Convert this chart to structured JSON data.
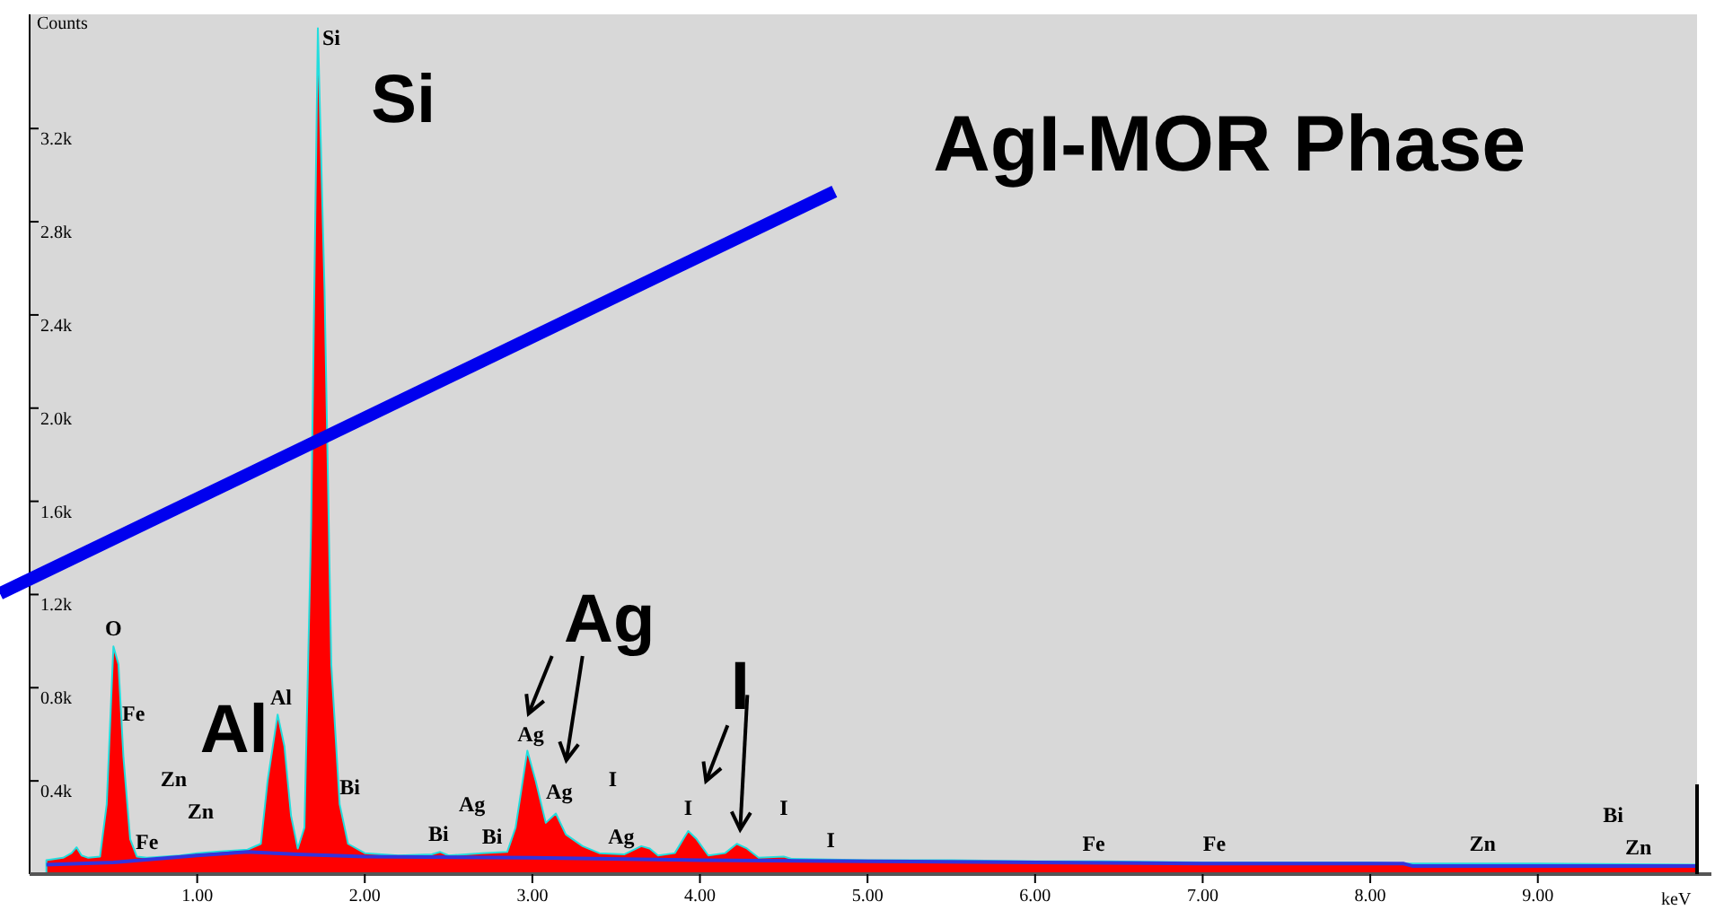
{
  "chart_data": {
    "type": "area",
    "ylabel": "Counts",
    "xlabel": "keV",
    "xlim": [
      0,
      9.95
    ],
    "ylim": [
      0,
      3690
    ],
    "xticks": [
      {
        "value": 1,
        "label": "1.00"
      },
      {
        "value": 2,
        "label": "2.00"
      },
      {
        "value": 3,
        "label": "3.00"
      },
      {
        "value": 4,
        "label": "4.00"
      },
      {
        "value": 5,
        "label": "5.00"
      },
      {
        "value": 6,
        "label": "6.00"
      },
      {
        "value": 7,
        "label": "7.00"
      },
      {
        "value": 8,
        "label": "8.00"
      },
      {
        "value": 9,
        "label": "9.00"
      }
    ],
    "yticks": [
      {
        "value": 400,
        "label": "0.4k"
      },
      {
        "value": 800,
        "label": "0.8k"
      },
      {
        "value": 1200,
        "label": "1.2k"
      },
      {
        "value": 1600,
        "label": "1.6k"
      },
      {
        "value": 2000,
        "label": "2.0k"
      },
      {
        "value": 2400,
        "label": "2.4k"
      },
      {
        "value": 2800,
        "label": "2.8k"
      },
      {
        "value": 3200,
        "label": "3.2k"
      }
    ],
    "grid": false,
    "series": [
      {
        "color": "#ff0000",
        "x": [
          0.1,
          0.2,
          0.25,
          0.28,
          0.31,
          0.35,
          0.42,
          0.46,
          0.5,
          0.53,
          0.56,
          0.6,
          0.64,
          0.7,
          0.8,
          0.9,
          1.0,
          1.1,
          1.2,
          1.3,
          1.38,
          1.42,
          1.48,
          1.52,
          1.56,
          1.6,
          1.64,
          1.68,
          1.72,
          1.76,
          1.8,
          1.85,
          1.9,
          2.0,
          2.2,
          2.4,
          2.45,
          2.5,
          2.7,
          2.85,
          2.9,
          2.97,
          3.02,
          3.08,
          3.14,
          3.2,
          3.3,
          3.4,
          3.55,
          3.65,
          3.7,
          3.75,
          3.85,
          3.93,
          3.98,
          4.05,
          4.15,
          4.22,
          4.28,
          4.35,
          4.5,
          4.55,
          5.0,
          5.5,
          6.0,
          6.4,
          7.0,
          8.0,
          8.2,
          9.0,
          9.95
        ],
        "values": [
          60,
          70,
          90,
          115,
          80,
          70,
          75,
          300,
          977,
          900,
          500,
          150,
          75,
          70,
          75,
          80,
          90,
          95,
          100,
          105,
          130,
          400,
          685,
          550,
          250,
          110,
          200,
          1500,
          3630,
          2500,
          900,
          300,
          130,
          90,
          80,
          85,
          95,
          80,
          90,
          95,
          200,
          530,
          400,
          220,
          260,
          170,
          120,
          90,
          85,
          120,
          110,
          80,
          90,
          185,
          150,
          80,
          90,
          130,
          110,
          70,
          75,
          65,
          60,
          60,
          55,
          55,
          50,
          50,
          45,
          45,
          40
        ]
      },
      {
        "type": "line",
        "color": "#3333dd",
        "x": [
          0.1,
          0.5,
          1.0,
          1.3,
          1.6,
          2.0,
          3.0,
          4.0,
          5.0,
          6.0,
          7.0,
          8.2,
          8.25,
          9.95
        ],
        "values": [
          40,
          50,
          80,
          95,
          85,
          75,
          70,
          60,
          55,
          50,
          45,
          45,
          35,
          35
        ]
      }
    ],
    "annotations": [
      "O",
      "Fe",
      "Zn",
      "Zn",
      "Fe",
      "Al",
      "Si",
      "Bi",
      "Bi",
      "Ag",
      "Bi",
      "Ag",
      "Ag",
      "I",
      "Ag",
      "I",
      "I",
      "I",
      "Fe",
      "Fe",
      "Zn",
      "Bi",
      "Zn",
      "Si",
      "Al",
      "Ag",
      "I",
      "AgI-MOR Phase"
    ]
  }
}
